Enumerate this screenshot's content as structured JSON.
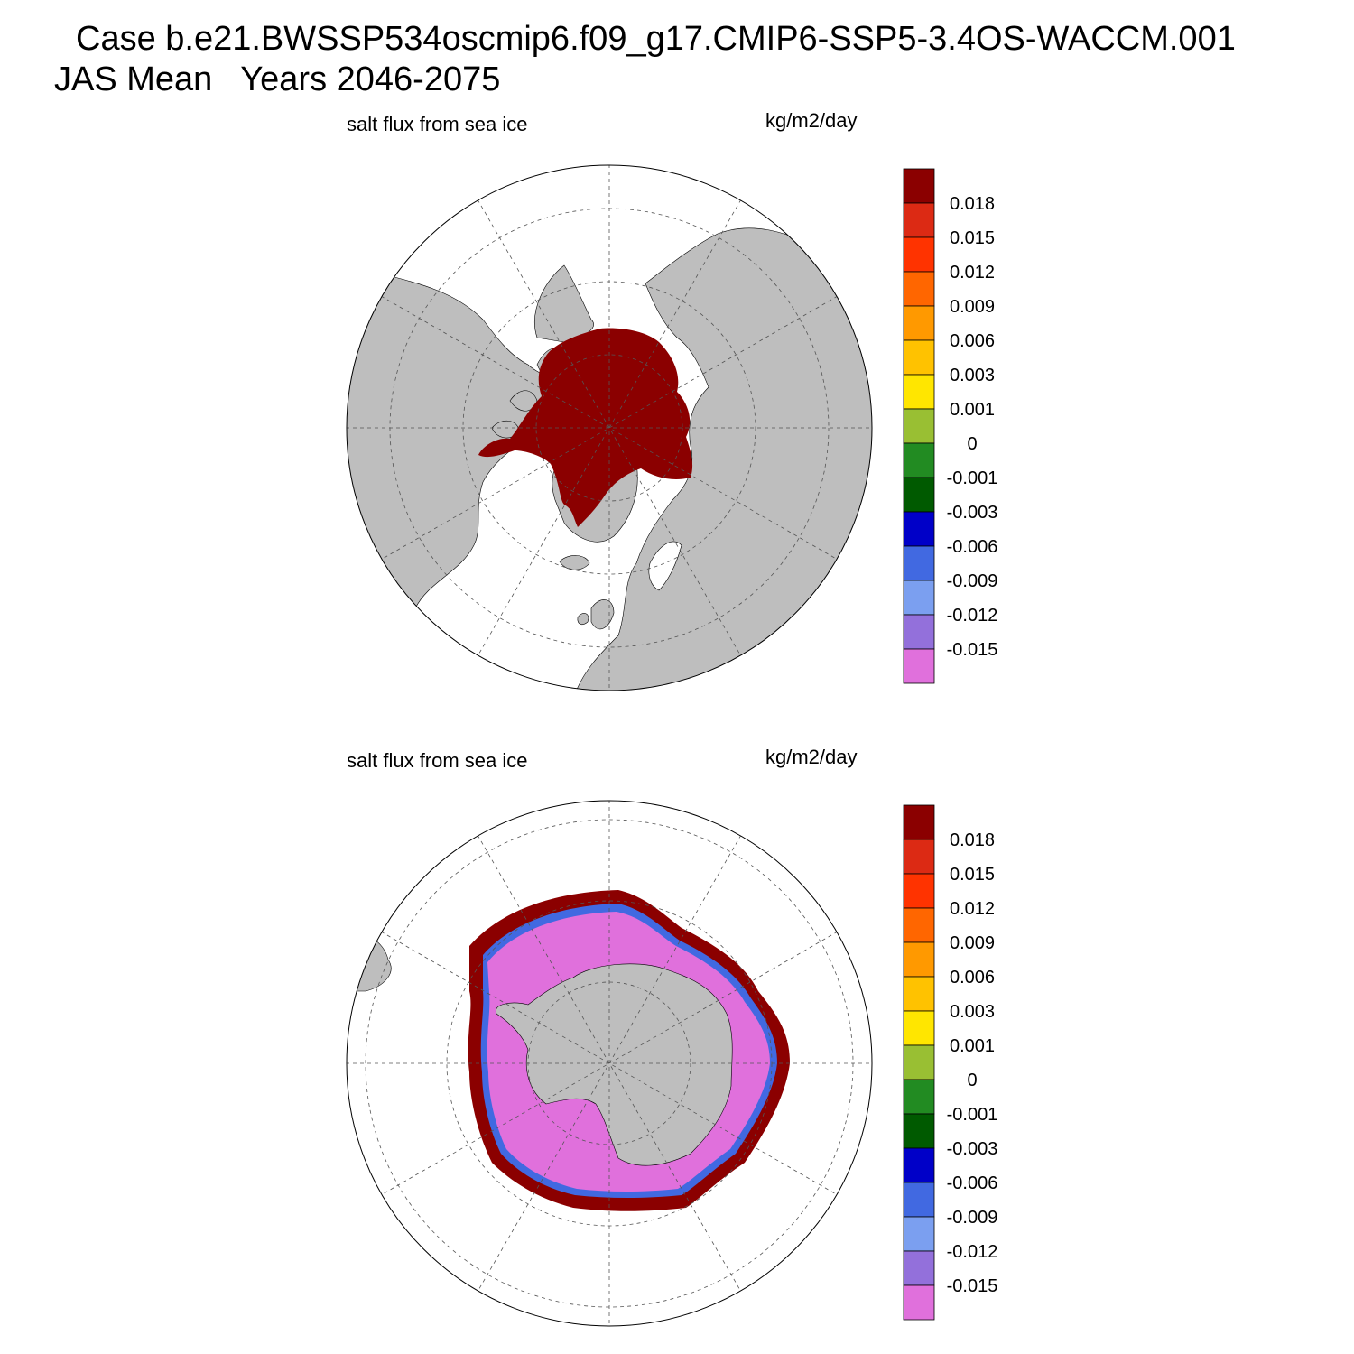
{
  "title": {
    "line1": "Case b.e21.BWSSP534oscmip6.f09_g17.CMIP6-SSP5-3.4OS-WACCM.001",
    "line2": "JAS Mean   Years 2046-2075"
  },
  "colors": {
    "land": "#bebebe",
    "ocean": "#ffffff",
    "grid": "#555555"
  },
  "colorbar": {
    "levels": [
      "0.018",
      "0.015",
      "0.012",
      "0.009",
      "0.006",
      "0.003",
      "0.001",
      "0",
      "-0.001",
      "-0.003",
      "-0.006",
      "-0.009",
      "-0.012",
      "-0.015"
    ],
    "colors": [
      "#8b0000",
      "#dc2a14",
      "#ff3300",
      "#ff6600",
      "#ff9900",
      "#ffc200",
      "#ffe600",
      "#99bf33",
      "#228b22",
      "#005a00",
      "#0000c8",
      "#4169e1",
      "#7b9ff0",
      "#9370db",
      "#e070dc"
    ]
  },
  "panels": [
    {
      "hemisphere": "Northern",
      "left_label": "salt flux from sea ice",
      "right_label": "kg/m2/day"
    },
    {
      "hemisphere": "Southern",
      "left_label": "salt flux from sea ice",
      "right_label": "kg/m2/day"
    }
  ]
}
